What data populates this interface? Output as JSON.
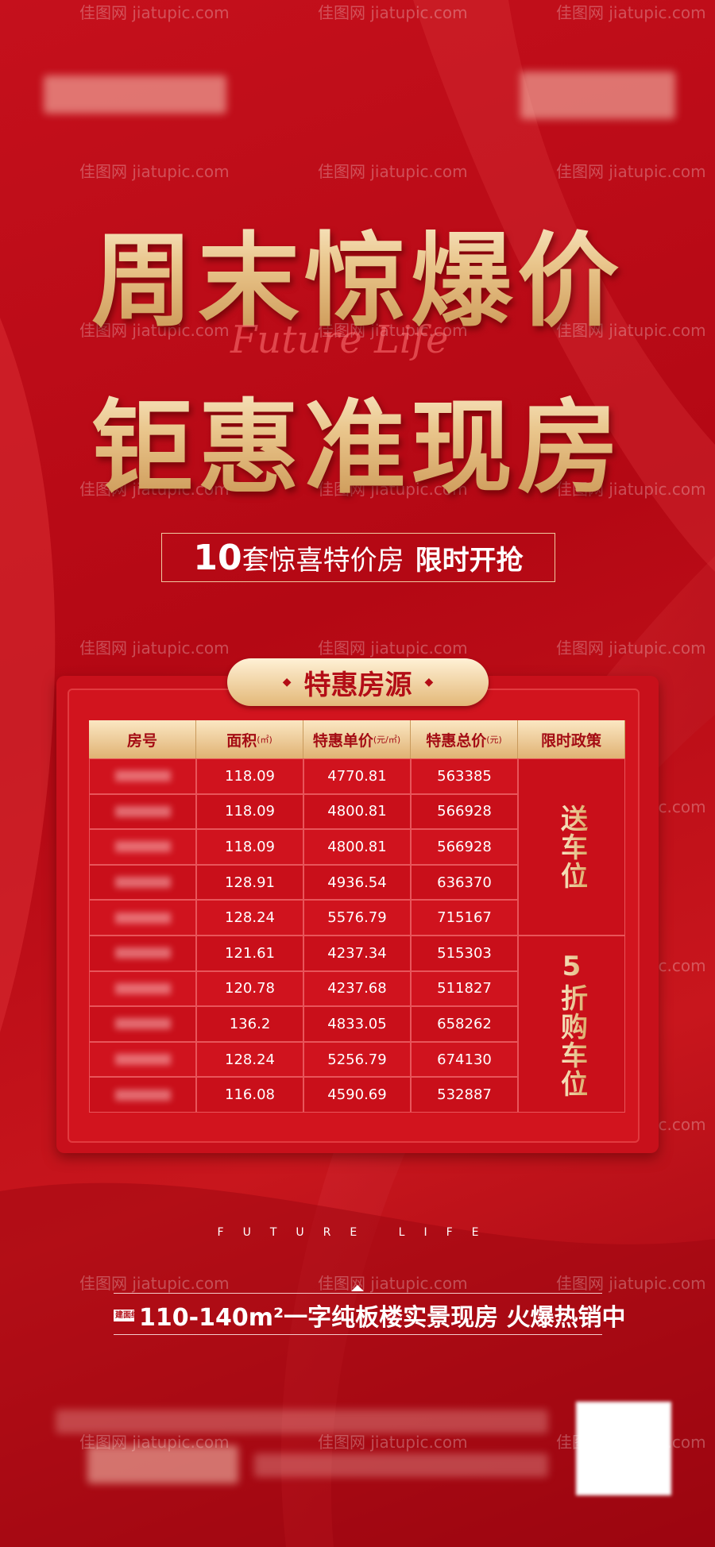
{
  "watermark": "佳图网 jiatupic.com",
  "headline": {
    "line1": "周末惊爆价",
    "line2": "钜惠准现房",
    "script": "Future Life"
  },
  "badge": {
    "count": "10",
    "text": "套惊喜特价房",
    "highlight": "限时开抢"
  },
  "panel": {
    "title": "特惠房源",
    "table": {
      "headers": [
        {
          "text": "房号"
        },
        {
          "text": "面积",
          "unit": "(㎡)"
        },
        {
          "text": "特惠单价",
          "unit": "(元/㎡)"
        },
        {
          "text": "特惠总价",
          "unit": "(元)"
        },
        {
          "text": "限时政策"
        }
      ],
      "rows": [
        [
          null,
          "118.09",
          "4770.81",
          "563385"
        ],
        [
          null,
          "118.09",
          "4800.81",
          "566928"
        ],
        [
          null,
          "118.09",
          "4800.81",
          "566928"
        ],
        [
          null,
          "128.91",
          "4936.54",
          "636370"
        ],
        [
          null,
          "128.24",
          "5576.79",
          "715167"
        ],
        [
          null,
          "121.61",
          "4237.34",
          "515303"
        ],
        [
          null,
          "120.78",
          "4237.68",
          "511827"
        ],
        [
          null,
          "136.2",
          "4833.05",
          "658262"
        ],
        [
          null,
          "128.24",
          "5256.79",
          "674130"
        ],
        [
          null,
          "116.08",
          "4590.69",
          "532887"
        ]
      ],
      "policies": [
        {
          "text": "送车位",
          "rows": 5
        },
        {
          "text": "5折购车位",
          "rows": 5
        }
      ]
    }
  },
  "footer": {
    "tagline": "FUTURE LIFE",
    "area_label": "建面约",
    "slogan": "110-140m²一字纯板楼实景现房 火爆热销中"
  }
}
